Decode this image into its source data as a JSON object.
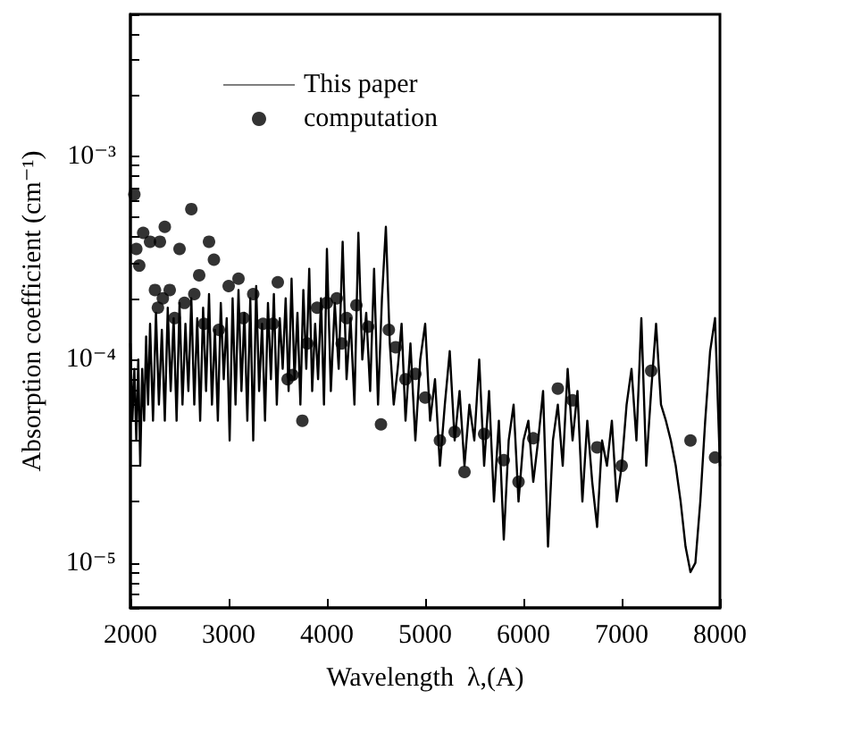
{
  "chart_data": {
    "type": "line",
    "xlabel": "Wavelength  λ,(A)",
    "ylabel": "Absorption coefficient (cm⁻¹)",
    "log": "y",
    "grid": false,
    "legend": "top left",
    "xlim": [
      2000,
      8000
    ],
    "xticks": [
      2000,
      3000,
      4000,
      5000,
      6000,
      7000,
      8000
    ],
    "ylim": [
      6e-06,
      0.005
    ],
    "yticks": [
      {
        "value": 6e-06,
        "label": null
      },
      {
        "value": 7e-06,
        "label": null
      },
      {
        "value": 8e-06,
        "label": null
      },
      {
        "value": 9e-06,
        "label": null
      },
      {
        "value": 1e-05,
        "label": "10⁻⁵"
      },
      {
        "value": 2e-05,
        "label": null
      },
      {
        "value": 3e-05,
        "label": null
      },
      {
        "value": 4e-05,
        "label": null
      },
      {
        "value": 5e-05,
        "label": null
      },
      {
        "value": 6e-05,
        "label": null
      },
      {
        "value": 7e-05,
        "label": null
      },
      {
        "value": 8e-05,
        "label": null
      },
      {
        "value": 9e-05,
        "label": null
      },
      {
        "value": 0.0001,
        "label": "10⁻⁴"
      },
      {
        "value": 0.0002,
        "label": null
      },
      {
        "value": 0.0003,
        "label": null
      },
      {
        "value": 0.0004,
        "label": null
      },
      {
        "value": 0.0005,
        "label": null
      },
      {
        "value": 0.0006,
        "label": null
      },
      {
        "value": 0.0007,
        "label": null
      },
      {
        "value": 0.0008,
        "label": null
      },
      {
        "value": 0.0009,
        "label": null
      },
      {
        "value": 0.001,
        "label": "10⁻³"
      },
      {
        "value": 0.002,
        "label": null
      },
      {
        "value": 0.003,
        "label": null
      },
      {
        "value": 0.004,
        "label": null
      },
      {
        "value": 0.005,
        "label": null
      }
    ],
    "series": [
      {
        "name": "This paper",
        "color": "#000000",
        "marker": "none",
        "line_style": "solid",
        "x": [
          2000,
          2020,
          2040,
          2060,
          2080,
          2100,
          2120,
          2140,
          2160,
          2180,
          2200,
          2230,
          2260,
          2290,
          2320,
          2350,
          2380,
          2410,
          2440,
          2470,
          2500,
          2530,
          2560,
          2590,
          2620,
          2650,
          2680,
          2710,
          2740,
          2770,
          2800,
          2830,
          2860,
          2890,
          2920,
          2950,
          2980,
          3010,
          3040,
          3070,
          3100,
          3130,
          3160,
          3190,
          3220,
          3250,
          3280,
          3310,
          3340,
          3370,
          3400,
          3430,
          3460,
          3490,
          3520,
          3550,
          3580,
          3610,
          3640,
          3670,
          3700,
          3730,
          3760,
          3790,
          3820,
          3850,
          3880,
          3910,
          3940,
          3970,
          4000,
          4040,
          4080,
          4120,
          4160,
          4200,
          4240,
          4280,
          4320,
          4360,
          4400,
          4440,
          4480,
          4520,
          4560,
          4600,
          4640,
          4680,
          4720,
          4760,
          4800,
          4850,
          4900,
          4950,
          5000,
          5050,
          5100,
          5150,
          5200,
          5250,
          5300,
          5350,
          5400,
          5450,
          5500,
          5550,
          5600,
          5650,
          5700,
          5750,
          5800,
          5850,
          5900,
          5950,
          6000,
          6050,
          6100,
          6150,
          6200,
          6250,
          6300,
          6350,
          6400,
          6450,
          6500,
          6550,
          6600,
          6650,
          6700,
          6750,
          6800,
          6850,
          6900,
          6950,
          7000,
          7050,
          7100,
          7150,
          7200,
          7250,
          7300,
          7350,
          7400,
          7450,
          7500,
          7550,
          7600,
          7650,
          7700,
          7750,
          7800,
          7850,
          7900,
          7950,
          8000
        ],
        "values": [
          0.00012,
          5e-05,
          9e-05,
          4e-05,
          0.0001,
          3e-05,
          9e-05,
          5e-05,
          0.00013,
          6e-05,
          0.00015,
          5e-05,
          0.00017,
          6e-05,
          0.00014,
          5e-05,
          0.00018,
          7e-05,
          0.00016,
          5e-05,
          0.00019,
          6e-05,
          0.00015,
          7e-05,
          0.0002,
          6e-05,
          0.00016,
          5e-05,
          0.00018,
          7e-05,
          0.00021,
          6e-05,
          0.00014,
          5e-05,
          0.00019,
          8e-05,
          0.00016,
          4e-05,
          0.0002,
          6e-05,
          0.00022,
          7e-05,
          0.00017,
          5e-05,
          0.0002,
          4e-05,
          0.00023,
          7e-05,
          0.00015,
          5e-05,
          0.00019,
          8e-05,
          0.00021,
          6e-05,
          0.00016,
          9e-05,
          0.0002,
          7e-05,
          0.00025,
          8e-05,
          0.00017,
          6e-05,
          0.00022,
          9e-05,
          0.00028,
          7e-05,
          0.00015,
          8e-05,
          0.0002,
          6e-05,
          0.00035,
          7e-05,
          0.00019,
          9e-05,
          0.00038,
          8e-05,
          0.00016,
          6e-05,
          0.00042,
          0.0001,
          0.00017,
          7e-05,
          0.00028,
          6e-05,
          0.0002,
          0.00045,
          0.00012,
          6e-05,
          9e-05,
          0.00015,
          5e-05,
          0.00012,
          4e-05,
          0.0001,
          0.00015,
          5e-05,
          8e-05,
          3e-05,
          6e-05,
          0.00011,
          4e-05,
          7e-05,
          3e-05,
          6e-05,
          4e-05,
          0.0001,
          3e-05,
          7e-05,
          2e-05,
          5e-05,
          1.3e-05,
          4e-05,
          6e-05,
          2e-05,
          4e-05,
          5e-05,
          2.5e-05,
          4e-05,
          7e-05,
          1.2e-05,
          4e-05,
          6e-05,
          3e-05,
          9e-05,
          4e-05,
          7e-05,
          2e-05,
          5e-05,
          2.5e-05,
          1.5e-05,
          4e-05,
          3e-05,
          5e-05,
          2e-05,
          3e-05,
          6e-05,
          9e-05,
          4e-05,
          0.00016,
          3e-05,
          7e-05,
          0.00015,
          6e-05,
          5e-05,
          4e-05,
          3e-05,
          2e-05,
          1.2e-05,
          9e-06,
          1e-05,
          2e-05,
          5e-05,
          0.00011,
          0.00016,
          3e-05
        ]
      },
      {
        "name": "computation",
        "type": "scatter",
        "color": "#000000",
        "marker": "circle",
        "x": [
          2040,
          2060,
          2090,
          2130,
          2200,
          2250,
          2280,
          2300,
          2330,
          2350,
          2400,
          2450,
          2500,
          2550,
          2620,
          2650,
          2700,
          2750,
          2800,
          2850,
          2900,
          3000,
          3100,
          3150,
          3250,
          3350,
          3450,
          3500,
          3600,
          3650,
          3750,
          3800,
          3900,
          4000,
          4100,
          4150,
          4200,
          4300,
          4420,
          4550,
          4630,
          4700,
          4800,
          4900,
          5000,
          5150,
          5300,
          5400,
          5600,
          5800,
          5950,
          6100,
          6350,
          6500,
          6750,
          7000,
          7300,
          7700,
          7950
        ],
        "values": [
          0.00065,
          0.00035,
          0.00029,
          0.00042,
          0.00038,
          0.00022,
          0.00018,
          0.00038,
          0.0002,
          0.00045,
          0.00022,
          0.00016,
          0.00035,
          0.00019,
          0.00055,
          0.00021,
          0.00026,
          0.00015,
          0.00038,
          0.00031,
          0.00014,
          0.00023,
          0.00025,
          0.00016,
          0.00021,
          0.00015,
          0.00015,
          0.00024,
          8e-05,
          8.4e-05,
          5e-05,
          0.00012,
          0.00018,
          0.00019,
          0.0002,
          0.00012,
          0.00016,
          0.000185,
          0.000145,
          4.8e-05,
          0.00014,
          0.000115,
          8e-05,
          8.5e-05,
          6.5e-05,
          4e-05,
          4.4e-05,
          2.8e-05,
          4.3e-05,
          3.2e-05,
          2.5e-05,
          4.1e-05,
          7.2e-05,
          6.3e-05,
          3.7e-05,
          3e-05,
          8.8e-05,
          4e-05,
          3.3e-05
        ]
      }
    ]
  }
}
